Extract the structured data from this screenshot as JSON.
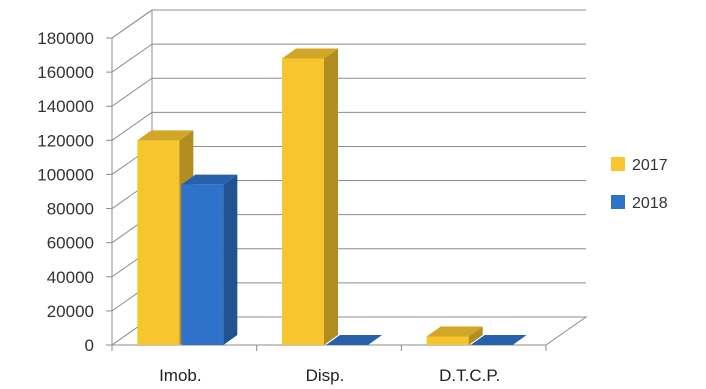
{
  "chart_data": {
    "type": "bar",
    "style": "3d-clustered-column",
    "categories": [
      "Imob.",
      "Disp.",
      "D.T.C.P."
    ],
    "series": [
      {
        "name": "2017",
        "values": [
          120000,
          168000,
          5000
        ],
        "color": "#F7C52E"
      },
      {
        "name": "2018",
        "values": [
          94000,
          0,
          0
        ],
        "color": "#2F72C9"
      }
    ],
    "ylim": [
      0,
      180000
    ],
    "yticks": [
      "0",
      "20000",
      "40000",
      "60000",
      "80000",
      "100000",
      "120000",
      "140000",
      "160000",
      "180000"
    ],
    "grid": true,
    "legend_position": "right"
  }
}
